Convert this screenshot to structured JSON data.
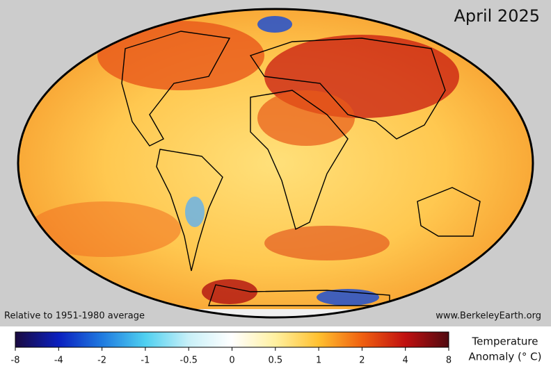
{
  "title": "April 2025",
  "note": "Relative to 1951-1980 average",
  "source": "www.BerkeleyEarth.org",
  "colorbar": {
    "ticks": [
      -8,
      -4,
      -2,
      -1,
      -0.5,
      0,
      0.5,
      1,
      2,
      4,
      8
    ],
    "colors": [
      "#1a0a40",
      "#0a1fbf",
      "#1f7ae0",
      "#4fd0f0",
      "#c8f0f8",
      "#ffffff",
      "#fff0a0",
      "#ffc030",
      "#f06010",
      "#c01010",
      "#500a10"
    ],
    "label": [
      "Temperature",
      "Anomaly (° C)"
    ]
  }
}
